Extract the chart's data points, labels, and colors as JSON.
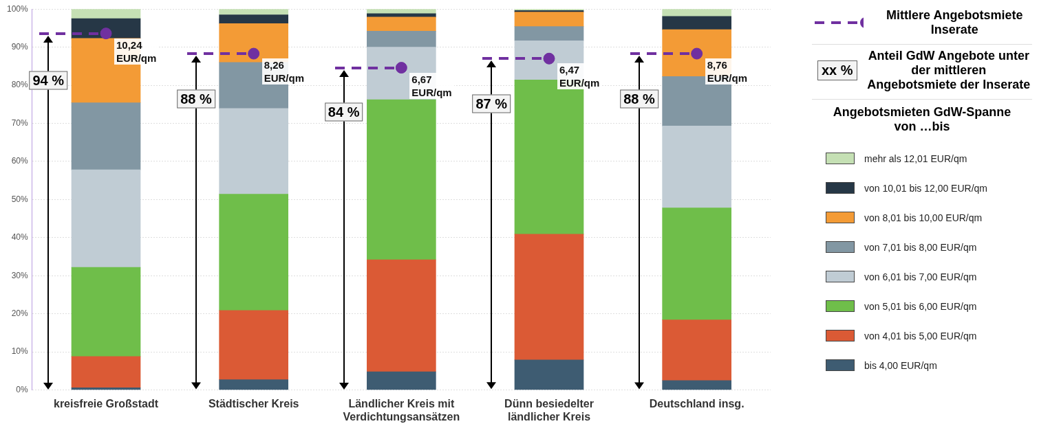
{
  "chart_data": {
    "type": "bar",
    "stacked": true,
    "categories": [
      "kreisfreie Großstadt",
      "Städtischer Kreis",
      "Ländlicher Kreis mit Verdichtungsansätzen",
      "Dünn besiedelter ländlicher Kreis",
      "Deutschland insg."
    ],
    "ylim": [
      0,
      100
    ],
    "yticks": [
      {
        "value": 0,
        "label": "0%"
      },
      {
        "value": 10,
        "label": "10%"
      },
      {
        "value": 20,
        "label": "20%"
      },
      {
        "value": 30,
        "label": "30%"
      },
      {
        "value": 40,
        "label": "40%"
      },
      {
        "value": 50,
        "label": "50%"
      },
      {
        "value": 60,
        "label": "60%"
      },
      {
        "value": 70,
        "label": "70%"
      },
      {
        "value": 80,
        "label": "80%"
      },
      {
        "value": 90,
        "label": "90%"
      },
      {
        "value": 100,
        "label": "100%"
      }
    ],
    "grid": "y",
    "legend": "right",
    "legend_title": "Angebotsmieten GdW-Spanne von …bis",
    "series": [
      {
        "name": "bis 4,00 EUR/qm",
        "color": "#3e5c72",
        "values": [
          0.6,
          2.7,
          4.8,
          7.9,
          2.5
        ]
      },
      {
        "name": "von 4,01 bis 5,00 EUR/qm",
        "color": "#db5a35",
        "values": [
          8.2,
          18.2,
          29.4,
          33.0,
          15.9
        ]
      },
      {
        "name": "von 5,01 bis 6,00 EUR/qm",
        "color": "#6fbe4a",
        "values": [
          23.4,
          30.5,
          42.0,
          40.5,
          29.4
        ]
      },
      {
        "name": "von 6,01 bis 7,00 EUR/qm",
        "color": "#c0ccd4",
        "values": [
          25.6,
          22.5,
          13.8,
          10.3,
          21.5
        ]
      },
      {
        "name": "von 7,01 bis 8,00 EUR/qm",
        "color": "#8297a3",
        "values": [
          17.6,
          12.1,
          4.2,
          3.7,
          13.0
        ]
      },
      {
        "name": "von 8,01 bis 10,00 EUR/qm",
        "color": "#f39b36",
        "values": [
          16.9,
          10.2,
          3.7,
          3.8,
          12.3
        ]
      },
      {
        "name": "von 10,01 bis 12,00 EUR/qm",
        "color": "#263746",
        "values": [
          5.2,
          2.3,
          0.9,
          0.4,
          3.5
        ]
      },
      {
        "name": "mehr als 12,01 EUR/qm",
        "color": "#c5e0b4",
        "values": [
          2.5,
          1.5,
          1.2,
          0.4,
          1.9
        ]
      },
      {
        "name": "Mittlere Angebotsmiete Inserate",
        "type": "scatter",
        "x": [
          "kreisfreie Großstadt",
          "Städtischer Kreis",
          "Ländlicher Kreis mit Verdichtungsansätzen",
          "Dünn besiedelter ländlicher Kreis",
          "Deutschland insg."
        ],
        "color": "#7030a0",
        "line_style": "dashed",
        "marker": "circle",
        "values": [
          93.6,
          88.3,
          84.6,
          87.0,
          88.3
        ]
      }
    ],
    "annotations": [
      {
        "text": "10,24 EUR/qm",
        "x": "kreisfreie Großstadt",
        "y": 93.6
      },
      {
        "text": "8,26 EUR/qm",
        "x": "Städtischer Kreis",
        "y": 88.3
      },
      {
        "text": "6,67 EUR/qm",
        "x": "Ländlicher Kreis mit Verdichtungsansätzen",
        "y": 84.6
      },
      {
        "text": "6,47 EUR/qm",
        "x": "Dünn besiedelter ländlicher Kreis",
        "y": 87.0
      },
      {
        "text": "8,76 EUR/qm",
        "x": "Deutschland insg.",
        "y": 88.3
      },
      "94 %",
      "88 %",
      "84 %",
      "87 %",
      "88 %",
      "xx %",
      "Anteil GdW Angebote unter der mittleren Angebotsmiete der Inserate"
    ]
  }
}
